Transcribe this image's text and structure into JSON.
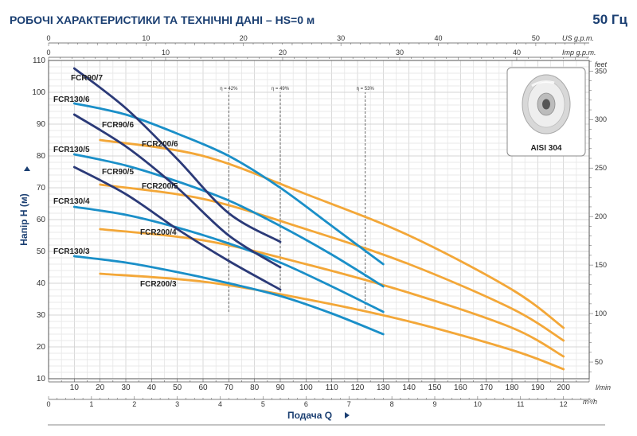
{
  "header": {
    "title": "РОБОЧІ ХАРАКТЕРИСТИКИ ТА ТЕХНІЧНІ ДАНІ  –  HS=0 м",
    "frequency": "50 Гц"
  },
  "inset": {
    "label": "AISI 304"
  },
  "chart_data": {
    "type": "line",
    "xlabel": "Подача Q",
    "ylabel": "Напір  H  (м)",
    "x_unit": "l/min",
    "xlim": [
      0,
      210
    ],
    "ylim": [
      10,
      110
    ],
    "x_ticks": [
      10,
      20,
      30,
      40,
      50,
      60,
      70,
      80,
      90,
      100,
      110,
      120,
      130,
      140,
      150,
      160,
      170,
      180,
      190,
      200
    ],
    "y_ticks": [
      10,
      20,
      30,
      40,
      50,
      60,
      70,
      80,
      90,
      100,
      110
    ],
    "grid": true,
    "secondary_axes": {
      "us_gpm": {
        "unit": "US g.p.m.",
        "ticks": [
          0,
          10,
          20,
          30,
          40,
          50
        ]
      },
      "imp_gpm": {
        "unit": "Imp g.p.m.",
        "ticks": [
          0,
          10,
          20,
          30,
          40
        ]
      },
      "m3h": {
        "unit": "m³/h",
        "ticks": [
          0,
          1,
          2,
          3,
          4,
          5,
          6,
          7,
          8,
          9,
          10,
          11,
          12
        ]
      },
      "feet": {
        "unit": "feet",
        "ticks": [
          50,
          100,
          150,
          200,
          250,
          300,
          350
        ]
      }
    },
    "efficiency_lines": [
      {
        "label": "η = 42%",
        "x": 70,
        "y_range": [
          31,
          100
        ]
      },
      {
        "label": "η = 49%",
        "x": 90,
        "y_range": [
          36,
          100
        ]
      },
      {
        "label": "η = 53%",
        "x": 123,
        "y_range": [
          32,
          100
        ]
      }
    ],
    "series": [
      {
        "name": "FCR90/7",
        "color": "#2b3a78",
        "points": [
          [
            10,
            107.5
          ],
          [
            30,
            95
          ],
          [
            50,
            79
          ],
          [
            70,
            62
          ],
          [
            90,
            53
          ]
        ]
      },
      {
        "name": "FCR90/6",
        "color": "#2b3a78",
        "points": [
          [
            10,
            93
          ],
          [
            30,
            83
          ],
          [
            50,
            70
          ],
          [
            70,
            55
          ],
          [
            90,
            45
          ]
        ]
      },
      {
        "name": "FCR90/5",
        "color": "#2b3a78",
        "points": [
          [
            10,
            76.5
          ],
          [
            30,
            68
          ],
          [
            50,
            57
          ],
          [
            70,
            47
          ],
          [
            90,
            38
          ]
        ]
      },
      {
        "name": "FCR130/6",
        "color": "#1a8fc8",
        "points": [
          [
            10,
            96.5
          ],
          [
            30,
            93
          ],
          [
            50,
            87
          ],
          [
            70,
            80
          ],
          [
            90,
            70
          ],
          [
            110,
            58
          ],
          [
            130,
            46
          ]
        ]
      },
      {
        "name": "FCR130/5",
        "color": "#1a8fc8",
        "points": [
          [
            10,
            80.5
          ],
          [
            30,
            77
          ],
          [
            50,
            72
          ],
          [
            70,
            66
          ],
          [
            90,
            58
          ],
          [
            110,
            49
          ],
          [
            130,
            39
          ]
        ]
      },
      {
        "name": "FCR130/4",
        "color": "#1a8fc8",
        "points": [
          [
            10,
            64
          ],
          [
            30,
            61.5
          ],
          [
            50,
            57.5
          ],
          [
            70,
            52.5
          ],
          [
            90,
            46.5
          ],
          [
            110,
            39
          ],
          [
            130,
            31
          ]
        ]
      },
      {
        "name": "FCR130/3",
        "color": "#1a8fc8",
        "points": [
          [
            10,
            48.5
          ],
          [
            30,
            46.5
          ],
          [
            50,
            43.5
          ],
          [
            70,
            40
          ],
          [
            90,
            36
          ],
          [
            110,
            30.5
          ],
          [
            130,
            24
          ]
        ]
      },
      {
        "name": "FCR200/6",
        "color": "#f3a738",
        "points": [
          [
            20,
            85
          ],
          [
            60,
            80
          ],
          [
            100,
            68
          ],
          [
            140,
            55
          ],
          [
            180,
            38
          ],
          [
            200,
            26
          ]
        ]
      },
      {
        "name": "FCR200/5",
        "color": "#f3a738",
        "points": [
          [
            20,
            71
          ],
          [
            60,
            66.5
          ],
          [
            100,
            57
          ],
          [
            140,
            46
          ],
          [
            180,
            32
          ],
          [
            200,
            22
          ]
        ]
      },
      {
        "name": "FCR200/4",
        "color": "#f3a738",
        "points": [
          [
            20,
            57
          ],
          [
            60,
            53.5
          ],
          [
            100,
            46
          ],
          [
            140,
            37
          ],
          [
            180,
            26
          ],
          [
            200,
            17
          ]
        ]
      },
      {
        "name": "FCR200/3",
        "color": "#f3a738",
        "points": [
          [
            20,
            43
          ],
          [
            60,
            40.5
          ],
          [
            100,
            35
          ],
          [
            140,
            28
          ],
          [
            180,
            19
          ],
          [
            200,
            13
          ]
        ]
      }
    ],
    "curve_labels": [
      "FCR90/7",
      "FCR130/6",
      "FCR90/6",
      "FCR200/6",
      "FCR130/5",
      "FCR90/5",
      "FCR200/5",
      "FCR130/4",
      "FCR200/4",
      "FCR130/3",
      "FCR200/3"
    ]
  }
}
